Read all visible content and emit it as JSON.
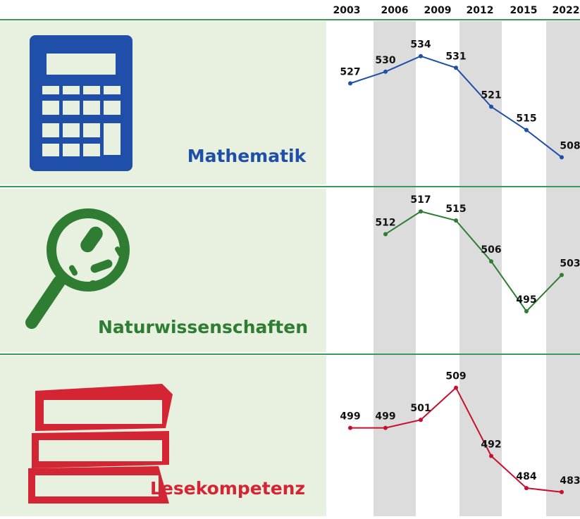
{
  "chart_data": [
    {
      "type": "line",
      "title": "Mathematik",
      "categories": [
        null,
        "2003",
        "2006",
        "2009",
        "2012",
        "2015",
        "2022"
      ],
      "series": [
        {
          "name": "Mathematik",
          "color": "#1f4fa8",
          "values": [
            527,
            530,
            534,
            531,
            521,
            515,
            508
          ]
        }
      ],
      "ylim": [
        501,
        543
      ]
    },
    {
      "type": "line",
      "title": "Naturwissenschaften",
      "series": [
        {
          "name": "Naturwissenschaften",
          "color": "#2e7d32",
          "values": [
            null,
            512,
            517,
            515,
            506,
            495,
            503
          ]
        }
      ],
      "ylim": [
        486,
        522
      ]
    },
    {
      "type": "line",
      "title": "Lesekompetenz",
      "series": [
        {
          "name": "Lesekompetenz",
          "color": "#c8102e",
          "values": [
            499,
            499,
            501,
            509,
            492,
            484,
            483
          ]
        }
      ],
      "ylim": [
        477,
        517
      ]
    }
  ]
}
